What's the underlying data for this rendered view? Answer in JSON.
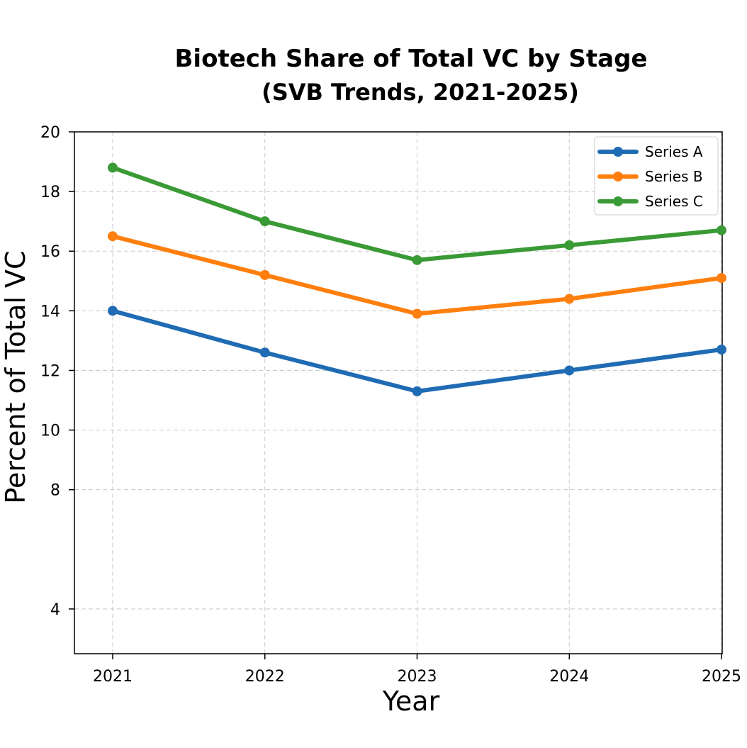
{
  "chart_data": {
    "type": "line",
    "title": "Biotech Share of Total VC by Stage",
    "subtitle": "(SVB Trends, 2021-2025)",
    "xlabel": "Year",
    "ylabel": "Percent of Total VC",
    "x": [
      "2021",
      "2022",
      "2023",
      "2024",
      "2025"
    ],
    "yticks": [
      4,
      8,
      10,
      12,
      14,
      16,
      18,
      20
    ],
    "ylim": [
      2.5,
      20
    ],
    "grid": true,
    "legend_position": "top-right",
    "series": [
      {
        "name": "Series A",
        "color": "#1f6bb4",
        "values": [
          14.0,
          12.6,
          11.3,
          12.0,
          12.7
        ]
      },
      {
        "name": "Series B",
        "color": "#ff7f0e",
        "values": [
          16.5,
          15.2,
          13.9,
          14.4,
          15.1
        ]
      },
      {
        "name": "Series C",
        "color": "#3a9a35",
        "values": [
          18.8,
          17.0,
          15.7,
          16.2,
          16.7
        ]
      }
    ]
  }
}
